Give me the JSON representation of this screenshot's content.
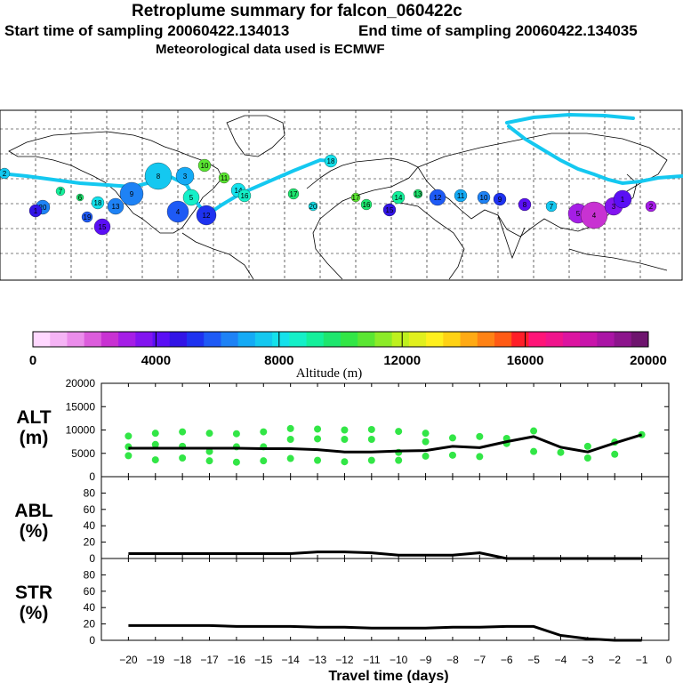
{
  "header": {
    "title": "Retroplume summary for falcon_060422c",
    "start": "Start time of sampling 20060422.134013",
    "end": "End time of sampling 20060422.134035",
    "met": "Meteorological data used is ECMWF"
  },
  "colorbar": {
    "tick_labels": [
      "0",
      "4000",
      "8000",
      "12000",
      "16000",
      "20000"
    ],
    "ticks": [
      0,
      4000,
      8000,
      12000,
      16000,
      20000
    ],
    "label": "Altitude (m)",
    "min": 0,
    "max": 20000,
    "colors": [
      "#ffd8ff",
      "#f5b4f5",
      "#eb8deb",
      "#dc5ddc",
      "#c832d2",
      "#a51ee6",
      "#8214f0",
      "#5a0ff5",
      "#3214e6",
      "#1e32f0",
      "#1e5af5",
      "#1e82f5",
      "#14aaf5",
      "#14c8f0",
      "#14e1eb",
      "#14f0c8",
      "#14f09b",
      "#1ee66e",
      "#32e646",
      "#5ae632",
      "#8ceb28",
      "#bef01e",
      "#e1f01e",
      "#fff01e",
      "#ffd214",
      "#ffaa14",
      "#ff8214",
      "#ff5a14",
      "#ff1e28",
      "#ff1478",
      "#f0148c",
      "#dc14a0",
      "#c814aa",
      "#aa14a5",
      "#8c148c",
      "#6e146e"
    ]
  },
  "map": {
    "trajectory_color": "#14c8f0",
    "labels": [
      "2",
      "20",
      "7",
      "6",
      "1",
      "19",
      "15",
      "18",
      "13",
      "9",
      "8",
      "3",
      "5",
      "4",
      "12",
      "10",
      "11",
      "14",
      "16",
      "17",
      "20",
      "18",
      "17",
      "16",
      "15",
      "14",
      "13",
      "12",
      "11",
      "10",
      "9",
      "8",
      "7",
      "5",
      "4",
      "3",
      "1",
      "2"
    ]
  },
  "chart_data": [
    {
      "type": "line",
      "panel": "ALT",
      "ylabel": "ALT\n(m)",
      "ylabel_line1": "ALT",
      "ylabel_line2": "(m)",
      "ylim": [
        0,
        20000
      ],
      "yticks": [
        0,
        5000,
        10000,
        15000,
        20000
      ],
      "ytick_labels": [
        "0",
        "5000",
        "10000",
        "15000",
        "20000"
      ],
      "x": [
        -20,
        -19,
        -18,
        -17,
        -16,
        -15,
        -14,
        -13,
        -12,
        -11,
        -10,
        -9,
        -8,
        -7,
        -6,
        -5,
        -4,
        -3,
        -2,
        -1
      ],
      "series": [
        {
          "name": "median altitude",
          "values": [
            6100,
            6100,
            6100,
            6100,
            6100,
            6000,
            6000,
            5800,
            5300,
            5300,
            5500,
            5600,
            6500,
            6200,
            7500,
            8600,
            6300,
            5300,
            7200,
            9000
          ]
        }
      ],
      "scatter_color": "#32e646",
      "scatter": [
        [
          -20,
          8700
        ],
        [
          -20,
          6400
        ],
        [
          -20,
          4500
        ],
        [
          -19,
          9300
        ],
        [
          -19,
          6900
        ],
        [
          -19,
          3600
        ],
        [
          -18,
          9600
        ],
        [
          -18,
          6500
        ],
        [
          -18,
          4000
        ],
        [
          -17,
          9300
        ],
        [
          -17,
          5400
        ],
        [
          -17,
          3400
        ],
        [
          -16,
          9200
        ],
        [
          -16,
          6400
        ],
        [
          -16,
          3100
        ],
        [
          -15,
          9600
        ],
        [
          -15,
          6400
        ],
        [
          -15,
          3400
        ],
        [
          -14,
          10300
        ],
        [
          -14,
          8000
        ],
        [
          -14,
          3900
        ],
        [
          -13,
          10200
        ],
        [
          -13,
          8100
        ],
        [
          -13,
          3500
        ],
        [
          -12,
          10000
        ],
        [
          -12,
          8000
        ],
        [
          -12,
          3200
        ],
        [
          -11,
          10100
        ],
        [
          -11,
          8000
        ],
        [
          -11,
          3500
        ],
        [
          -10,
          9700
        ],
        [
          -10,
          5200
        ],
        [
          -10,
          3500
        ],
        [
          -9,
          9300
        ],
        [
          -9,
          7500
        ],
        [
          -9,
          4400
        ],
        [
          -8,
          8300
        ],
        [
          -8,
          4600
        ],
        [
          -7,
          8600
        ],
        [
          -7,
          4300
        ],
        [
          -6,
          8200
        ],
        [
          -6,
          7100
        ],
        [
          -5,
          9800
        ],
        [
          -5,
          5400
        ],
        [
          -4,
          5200
        ],
        [
          -3,
          6500
        ],
        [
          -3,
          4000
        ],
        [
          -2,
          7400
        ],
        [
          -2,
          4800
        ],
        [
          -1,
          9000
        ]
      ]
    },
    {
      "type": "line",
      "panel": "ABL",
      "ylabel_line1": "ABL",
      "ylabel_line2": "(%)",
      "ylim": [
        0,
        100
      ],
      "yticks": [
        0,
        20,
        40,
        60,
        80
      ],
      "ytick_labels": [
        "0",
        "20",
        "40",
        "60",
        "80"
      ],
      "x": [
        -20,
        -19,
        -18,
        -17,
        -16,
        -15,
        -14,
        -13,
        -12,
        -11,
        -10,
        -9,
        -8,
        -7,
        -6,
        -5,
        -4,
        -3,
        -2,
        -1
      ],
      "series": [
        {
          "name": "ABL fraction",
          "values": [
            6,
            6,
            6,
            6,
            6,
            6,
            6,
            8,
            8,
            7,
            4,
            4,
            4,
            7,
            0,
            0,
            0,
            0,
            0,
            0
          ]
        }
      ]
    },
    {
      "type": "line",
      "panel": "STR",
      "ylabel_line1": "STR",
      "ylabel_line2": "(%)",
      "ylim": [
        0,
        100
      ],
      "yticks": [
        0,
        20,
        40,
        60,
        80
      ],
      "ytick_labels": [
        "0",
        "20",
        "40",
        "60",
        "80"
      ],
      "x": [
        -20,
        -19,
        -18,
        -17,
        -16,
        -15,
        -14,
        -13,
        -12,
        -11,
        -10,
        -9,
        -8,
        -7,
        -6,
        -5,
        -4,
        -3,
        -2,
        -1
      ],
      "series": [
        {
          "name": "stratosphere fraction",
          "values": [
            18,
            18,
            18,
            18,
            17,
            17,
            17,
            16,
            16,
            15,
            15,
            15,
            16,
            16,
            17,
            17,
            6,
            2,
            0,
            0
          ]
        }
      ],
      "xlabel": "Travel time (days)",
      "xticks": [
        -20,
        -19,
        -18,
        -17,
        -16,
        -15,
        -14,
        -13,
        -12,
        -11,
        -10,
        -9,
        -8,
        -7,
        -6,
        -5,
        -4,
        -3,
        -2,
        -1,
        0
      ],
      "xtick_labels": [
        "−20",
        "−19",
        "−18",
        "−17",
        "−16",
        "−15",
        "−14",
        "−13",
        "−12",
        "−11",
        "−10",
        "−9",
        "−8",
        "−7",
        "−6",
        "−5",
        "−4",
        "−3",
        "−2",
        "−1",
        "0"
      ]
    }
  ]
}
